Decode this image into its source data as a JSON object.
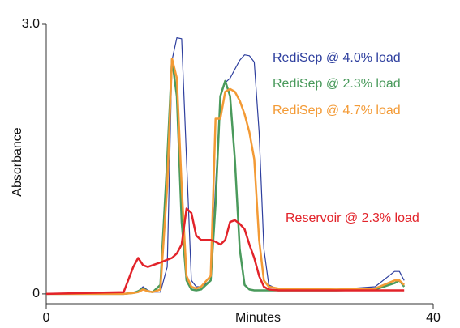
{
  "chart_data": {
    "type": "line",
    "xlabel": "Minutes",
    "ylabel": "Absorbance",
    "xlim": [
      0,
      40
    ],
    "ylim": [
      -0.1,
      3.0
    ],
    "xticks": [
      0,
      40
    ],
    "yticks": [
      0,
      {
        "value": 3,
        "label": "3.0"
      }
    ],
    "x": [
      0,
      8,
      9,
      9.5,
      10,
      10.5,
      11,
      11.8,
      12.5,
      13,
      13.5,
      14,
      14.5,
      15,
      15.5,
      16,
      17,
      17.5,
      18,
      18.5,
      19,
      19.5,
      20,
      20.5,
      21,
      21.5,
      22,
      22.5,
      23,
      24,
      30,
      34,
      36,
      36.5,
      37
    ],
    "series": [
      {
        "name": "RediSep @ 4.0% load",
        "color": "#2e3f9e",
        "values": [
          0,
          0,
          0.02,
          0.03,
          0.08,
          0.04,
          0.02,
          0.02,
          0.3,
          2.6,
          2.85,
          2.84,
          1.5,
          0.15,
          0.08,
          0.08,
          0.15,
          1.2,
          2.2,
          2.35,
          2.4,
          2.5,
          2.6,
          2.66,
          2.65,
          2.58,
          1.8,
          0.5,
          0.1,
          0.05,
          0.05,
          0.08,
          0.25,
          0.25,
          0.15
        ]
      },
      {
        "name": "RediSep @ 2.3% load",
        "color": "#4a9a5c",
        "values": [
          0,
          0,
          0.01,
          0.03,
          0.06,
          0.03,
          0.02,
          0.1,
          1.5,
          2.61,
          2.2,
          0.8,
          0.15,
          0.05,
          0.04,
          0.05,
          0.15,
          1.0,
          2.2,
          2.37,
          2.2,
          1.5,
          0.5,
          0.1,
          0.05,
          0.04,
          0.04,
          0.04,
          0.04,
          0.04,
          0.04,
          0.05,
          0.12,
          0.15,
          0.08
        ]
      },
      {
        "name": "RediSep @ 4.7% load",
        "color": "#f39a35",
        "values": [
          0,
          0,
          0.01,
          0.02,
          0.05,
          0.03,
          0.02,
          0.05,
          1.2,
          2.62,
          2.4,
          1.2,
          0.2,
          0.08,
          0.06,
          0.08,
          0.2,
          1.95,
          1.95,
          2.25,
          2.28,
          2.25,
          2.15,
          2.0,
          1.8,
          1.5,
          0.6,
          0.15,
          0.08,
          0.06,
          0.05,
          0.06,
          0.15,
          0.15,
          0.1
        ]
      },
      {
        "name": "Reservoir @ 2.3% load",
        "color": "#e2232a",
        "values": [
          0,
          0.02,
          0.3,
          0.4,
          0.32,
          0.3,
          0.32,
          0.35,
          0.38,
          0.4,
          0.45,
          0.55,
          0.95,
          0.9,
          0.65,
          0.6,
          0.6,
          0.58,
          0.55,
          0.6,
          0.8,
          0.82,
          0.78,
          0.72,
          0.55,
          0.4,
          0.2,
          0.08,
          0.05,
          0.04,
          0.04,
          0.04,
          0.04,
          0.04,
          0.04
        ]
      }
    ]
  }
}
